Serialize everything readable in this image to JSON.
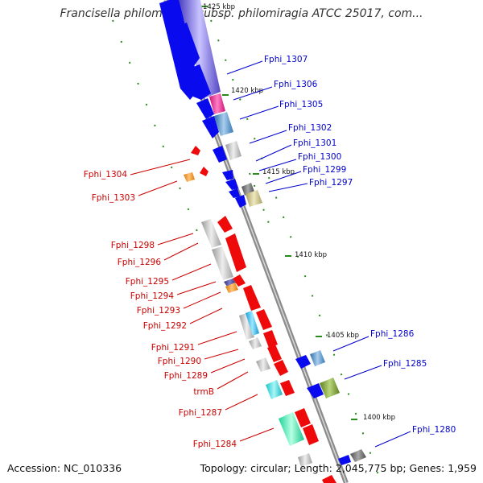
{
  "title": "Francisella philomiragia subsp. philomiragia ATCC 25017, com...",
  "footer": {
    "accession": "Accession: NC_010336",
    "topology": "Topology: circular; Length: 2,045,775 bp; Genes: 1,959"
  },
  "kbp_labels": [
    "1425 kbp",
    "1420 kbp",
    "1415 kbp",
    "1410 kbp",
    "1405 kbp",
    "1400 kbp"
  ],
  "genes_right": [
    "Fphi_1307",
    "Fphi_1306",
    "Fphi_1305",
    "Fphi_1302",
    "Fphi_1301",
    "Fphi_1300",
    "Fphi_1299",
    "Fphi_1297",
    "Fphi_1286",
    "Fphi_1285",
    "Fphi_1280"
  ],
  "genes_left": [
    "Fphi_1304",
    "Fphi_1303",
    "Fphi_1298",
    "Fphi_1296",
    "Fphi_1295",
    "Fphi_1294",
    "Fphi_1293",
    "Fphi_1292",
    "Fphi_1291",
    "Fphi_1290",
    "Fphi_1289",
    "trmB",
    "Fphi_1287",
    "Fphi_1284"
  ],
  "colors": {
    "forward_label": "#0000cc",
    "reverse_label": "#cc0000",
    "forward_gene": "#0a0aee",
    "reverse_gene": "#ee0a0a",
    "backbone": "#8c8c8c",
    "tick": "#2b8a1e"
  }
}
